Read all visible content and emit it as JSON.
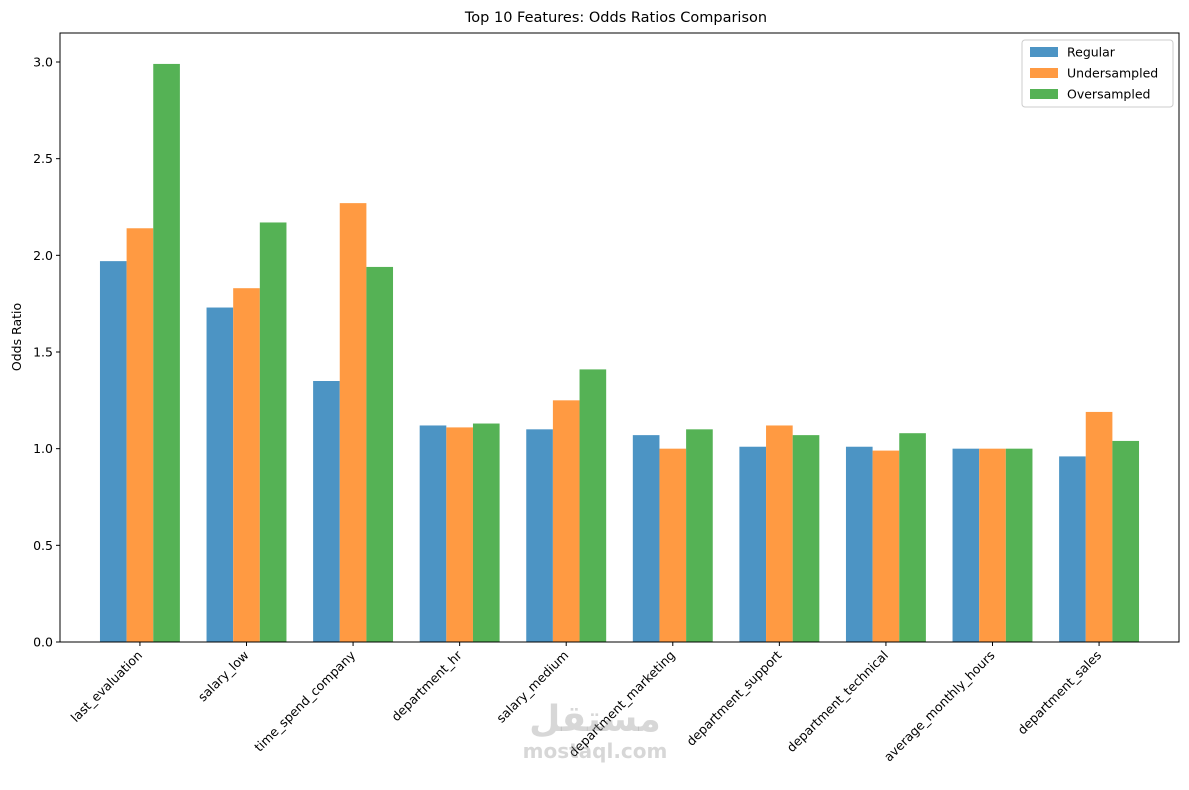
{
  "chart_data": {
    "type": "bar",
    "title": "Top 10 Features: Odds Ratios Comparison",
    "xlabel": "",
    "ylabel": "Odds Ratio",
    "ylim": [
      0,
      3.15
    ],
    "yticks": [
      0.0,
      0.5,
      1.0,
      1.5,
      2.0,
      2.5,
      3.0
    ],
    "ytick_labels": [
      "0.0",
      "0.5",
      "1.0",
      "1.5",
      "2.0",
      "2.5",
      "3.0"
    ],
    "categories": [
      "last_evaluation",
      "salary_low",
      "time_spend_company",
      "department_hr",
      "salary_medium",
      "department_marketing",
      "department_support",
      "department_technical",
      "average_monthly_hours",
      "department_sales"
    ],
    "series": [
      {
        "name": "Regular",
        "color": "#4c94c4",
        "values": [
          1.97,
          1.73,
          1.35,
          1.12,
          1.1,
          1.07,
          1.01,
          1.01,
          1.0,
          0.96
        ]
      },
      {
        "name": "Undersampled",
        "color": "#ff9a42",
        "values": [
          2.14,
          1.83,
          2.27,
          1.11,
          1.25,
          1.0,
          1.12,
          0.99,
          1.0,
          1.19
        ]
      },
      {
        "name": "Oversampled",
        "color": "#55b255",
        "values": [
          2.99,
          2.17,
          1.94,
          1.13,
          1.41,
          1.1,
          1.07,
          1.08,
          1.0,
          1.04
        ]
      }
    ],
    "legend_position": "top-right",
    "grid": false
  },
  "watermark": {
    "logo_text": "مستقل",
    "site_text": "mostaql.com"
  }
}
